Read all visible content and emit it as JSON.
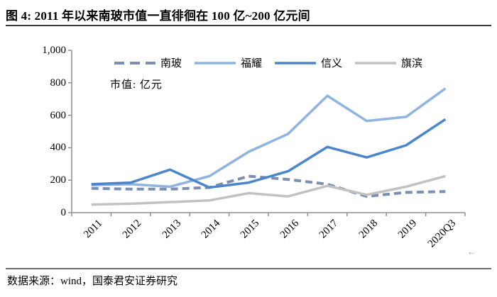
{
  "figure": {
    "title": "图 4: 2011 年以来南玻市值一直徘徊在 100 亿~200 亿元间",
    "unit_label": "市值: 亿元",
    "source": "数据来源：wind，国泰君安证券研究",
    "nav_arrow": "←"
  },
  "colors": {
    "axis": "#8f8f8f",
    "title_rule": "#3a3a3a",
    "source_rule": "#6f6f6f",
    "text": "#000000"
  },
  "chart_data": {
    "type": "line",
    "title": "图 4: 2011 年以来南玻市值一直徘徊在 100 亿~200 亿元间",
    "ylabel": "市值: 亿元",
    "xlabel": "",
    "ylim": [
      0,
      1000
    ],
    "grid": false,
    "legend_position": "top-center",
    "categories": [
      "2011",
      "2012",
      "2013",
      "2014",
      "2015",
      "2016",
      "2017",
      "2018",
      "2019",
      "2020Q3"
    ],
    "y_ticks": [
      {
        "value": 0,
        "label": "0"
      },
      {
        "value": 200,
        "label": "200"
      },
      {
        "value": 400,
        "label": "400"
      },
      {
        "value": 600,
        "label": "600"
      },
      {
        "value": 800,
        "label": "800"
      },
      {
        "value": 1000,
        "label": "1,000"
      }
    ],
    "series": [
      {
        "key": "nanbo",
        "name": "南玻",
        "color": "#7b8fb2",
        "dashed": true,
        "values": [
          150,
          145,
          145,
          155,
          225,
          205,
          175,
          100,
          125,
          130
        ]
      },
      {
        "key": "fuyao",
        "name": "福耀",
        "color": "#90b4e2",
        "dashed": false,
        "values": [
          170,
          175,
          160,
          225,
          375,
          485,
          720,
          565,
          590,
          765
        ]
      },
      {
        "key": "xinyi",
        "name": "信义",
        "color": "#4b86cd",
        "dashed": false,
        "values": [
          175,
          185,
          265,
          155,
          185,
          255,
          405,
          340,
          415,
          575
        ]
      },
      {
        "key": "qibin",
        "name": "旗滨",
        "color": "#c2c2c2",
        "dashed": false,
        "values": [
          50,
          55,
          65,
          75,
          120,
          100,
          165,
          110,
          160,
          225
        ]
      }
    ]
  }
}
